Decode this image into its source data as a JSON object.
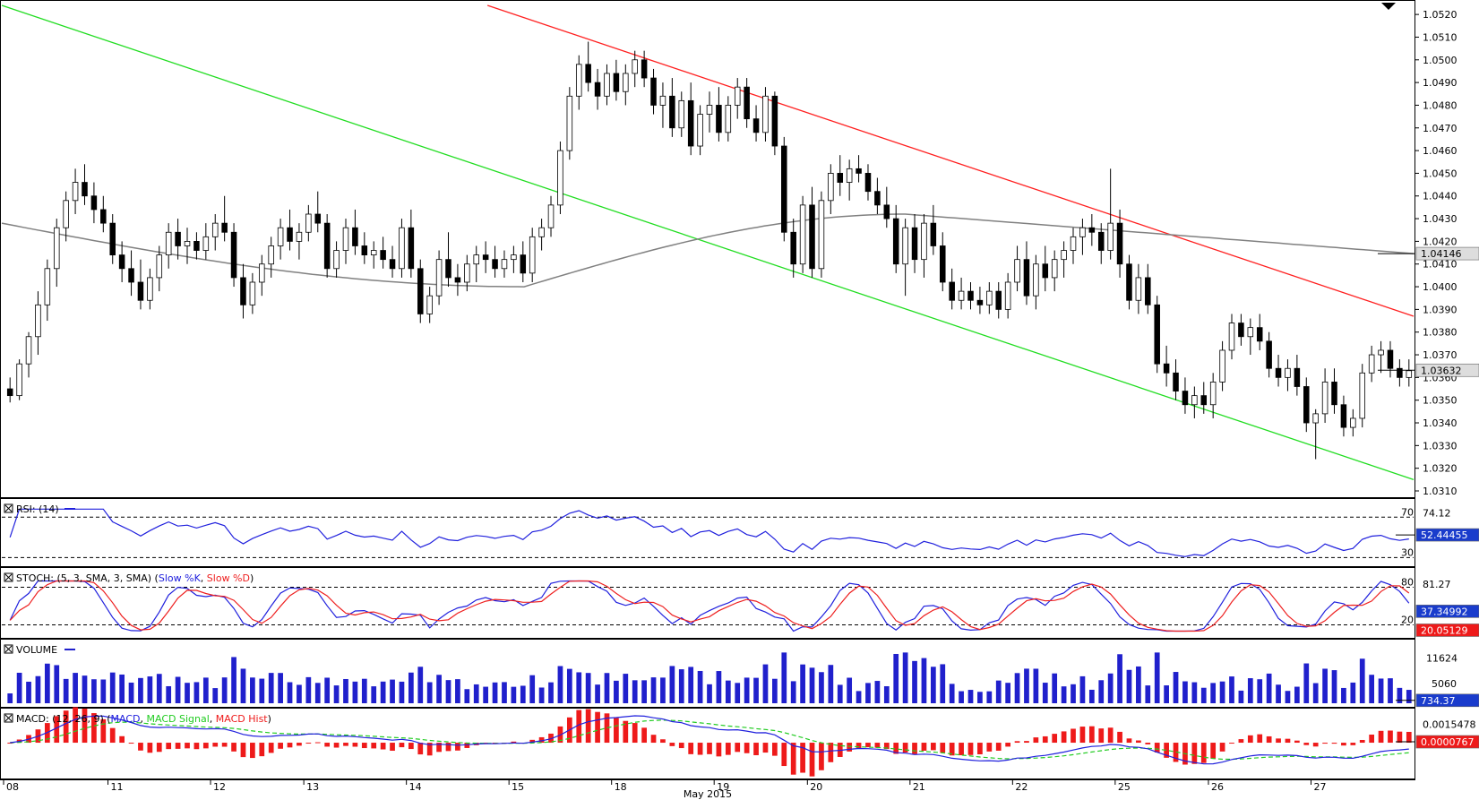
{
  "chart_data": {
    "type": "candlestick",
    "price_axis": {
      "ticks": [
        "1.0520",
        "1.0510",
        "1.0500",
        "1.0490",
        "1.0480",
        "1.0470",
        "1.0460",
        "1.0450",
        "1.0440",
        "1.0430",
        "1.0420",
        "1.0410",
        "1.0400",
        "1.0390",
        "1.0380",
        "1.0370",
        "1.0360",
        "1.0350",
        "1.0340",
        "1.0330",
        "1.0320",
        "1.0310"
      ],
      "ylim": [
        1.031,
        1.0524
      ],
      "current_price": "1.03632",
      "ma_value": "1.04146"
    },
    "x_axis": {
      "day_labels": [
        "08",
        "11",
        "12",
        "13",
        "14",
        "15",
        "18",
        "19",
        "20",
        "21",
        "22",
        "25",
        "26",
        "27"
      ],
      "month_label": "May 2015"
    },
    "candles": [
      [
        1.0355,
        1.036,
        1.0349,
        1.0352
      ],
      [
        1.0352,
        1.0368,
        1.035,
        1.0366
      ],
      [
        1.0366,
        1.038,
        1.036,
        1.0378
      ],
      [
        1.0378,
        1.0398,
        1.037,
        1.0392
      ],
      [
        1.0392,
        1.0412,
        1.0385,
        1.0408
      ],
      [
        1.0408,
        1.043,
        1.04,
        1.0426
      ],
      [
        1.0426,
        1.0442,
        1.042,
        1.0438
      ],
      [
        1.0438,
        1.0452,
        1.0432,
        1.0446
      ],
      [
        1.0446,
        1.0454,
        1.0436,
        1.044
      ],
      [
        1.044,
        1.0446,
        1.0428,
        1.0434
      ],
      [
        1.0434,
        1.044,
        1.0424,
        1.0428
      ],
      [
        1.0428,
        1.0432,
        1.041,
        1.0414
      ],
      [
        1.0414,
        1.042,
        1.0402,
        1.0408
      ],
      [
        1.0408,
        1.0416,
        1.0396,
        1.0402
      ],
      [
        1.0402,
        1.0412,
        1.039,
        1.0394
      ],
      [
        1.0394,
        1.0408,
        1.039,
        1.0404
      ],
      [
        1.0404,
        1.0418,
        1.0398,
        1.0414
      ],
      [
        1.0414,
        1.0428,
        1.0408,
        1.0424
      ],
      [
        1.0424,
        1.043,
        1.0412,
        1.0418
      ],
      [
        1.0418,
        1.0426,
        1.041,
        1.042
      ],
      [
        1.042,
        1.0424,
        1.0412,
        1.0416
      ],
      [
        1.0416,
        1.0428,
        1.0412,
        1.0422
      ],
      [
        1.0422,
        1.0432,
        1.0416,
        1.0428
      ],
      [
        1.0428,
        1.044,
        1.042,
        1.0424
      ],
      [
        1.0424,
        1.0428,
        1.04,
        1.0404
      ],
      [
        1.0404,
        1.041,
        1.0386,
        1.0392
      ],
      [
        1.0392,
        1.0406,
        1.0388,
        1.0402
      ],
      [
        1.0402,
        1.0414,
        1.0396,
        1.041
      ],
      [
        1.041,
        1.0422,
        1.0404,
        1.0418
      ],
      [
        1.0418,
        1.043,
        1.0412,
        1.0426
      ],
      [
        1.0426,
        1.0434,
        1.0416,
        1.042
      ],
      [
        1.042,
        1.0428,
        1.0412,
        1.0424
      ],
      [
        1.0424,
        1.0436,
        1.042,
        1.0432
      ],
      [
        1.0432,
        1.0442,
        1.0424,
        1.0428
      ],
      [
        1.0428,
        1.0432,
        1.0404,
        1.0408
      ],
      [
        1.0408,
        1.042,
        1.0404,
        1.0416
      ],
      [
        1.0416,
        1.043,
        1.041,
        1.0426
      ],
      [
        1.0426,
        1.0434,
        1.0414,
        1.0418
      ],
      [
        1.0418,
        1.0424,
        1.041,
        1.0414
      ],
      [
        1.0414,
        1.042,
        1.0408,
        1.0416
      ],
      [
        1.0416,
        1.0422,
        1.0408,
        1.0412
      ],
      [
        1.0412,
        1.0418,
        1.0404,
        1.0408
      ],
      [
        1.0408,
        1.043,
        1.0404,
        1.0426
      ],
      [
        1.0426,
        1.0434,
        1.0404,
        1.0408
      ],
      [
        1.0408,
        1.0412,
        1.0384,
        1.0388
      ],
      [
        1.0388,
        1.04,
        1.0384,
        1.0396
      ],
      [
        1.0396,
        1.0416,
        1.0392,
        1.0412
      ],
      [
        1.0412,
        1.0424,
        1.04,
        1.0404
      ],
      [
        1.0404,
        1.041,
        1.0396,
        1.0402
      ],
      [
        1.0402,
        1.0414,
        1.0398,
        1.041
      ],
      [
        1.041,
        1.0418,
        1.0402,
        1.0414
      ],
      [
        1.0414,
        1.042,
        1.0406,
        1.0412
      ],
      [
        1.0412,
        1.0418,
        1.0404,
        1.0408
      ],
      [
        1.0408,
        1.0416,
        1.0404,
        1.0412
      ],
      [
        1.0412,
        1.0418,
        1.0406,
        1.0414
      ],
      [
        1.0414,
        1.042,
        1.0402,
        1.0406
      ],
      [
        1.0406,
        1.0426,
        1.0402,
        1.0422
      ],
      [
        1.0422,
        1.043,
        1.0416,
        1.0426
      ],
      [
        1.0426,
        1.044,
        1.0422,
        1.0436
      ],
      [
        1.0436,
        1.0464,
        1.0432,
        1.046
      ],
      [
        1.046,
        1.0488,
        1.0456,
        1.0484
      ],
      [
        1.0484,
        1.0502,
        1.0478,
        1.0498
      ],
      [
        1.0498,
        1.0508,
        1.0486,
        1.049
      ],
      [
        1.049,
        1.0496,
        1.0478,
        1.0484
      ],
      [
        1.0484,
        1.0498,
        1.048,
        1.0494
      ],
      [
        1.0494,
        1.05,
        1.0482,
        1.0486
      ],
      [
        1.0486,
        1.0498,
        1.048,
        1.0494
      ],
      [
        1.0494,
        1.0504,
        1.0488,
        1.05
      ],
      [
        1.05,
        1.0504,
        1.0488,
        1.0492
      ],
      [
        1.0492,
        1.0496,
        1.0476,
        1.048
      ],
      [
        1.048,
        1.049,
        1.047,
        1.0484
      ],
      [
        1.0484,
        1.0492,
        1.0466,
        1.047
      ],
      [
        1.047,
        1.0486,
        1.0466,
        1.0482
      ],
      [
        1.0482,
        1.049,
        1.0458,
        1.0462
      ],
      [
        1.0462,
        1.048,
        1.0458,
        1.0476
      ],
      [
        1.0476,
        1.0486,
        1.0468,
        1.048
      ],
      [
        1.048,
        1.0488,
        1.0464,
        1.0468
      ],
      [
        1.0468,
        1.0484,
        1.0464,
        1.048
      ],
      [
        1.048,
        1.0492,
        1.0474,
        1.0488
      ],
      [
        1.0488,
        1.0492,
        1.047,
        1.0474
      ],
      [
        1.0474,
        1.048,
        1.0464,
        1.0468
      ],
      [
        1.0468,
        1.0488,
        1.0464,
        1.0484
      ],
      [
        1.0484,
        1.0486,
        1.0458,
        1.0462
      ],
      [
        1.0462,
        1.0466,
        1.042,
        1.0424
      ],
      [
        1.0424,
        1.043,
        1.0404,
        1.041
      ],
      [
        1.041,
        1.044,
        1.0406,
        1.0436
      ],
      [
        1.0436,
        1.0444,
        1.0404,
        1.0408
      ],
      [
        1.0408,
        1.0442,
        1.0404,
        1.0438
      ],
      [
        1.0438,
        1.0454,
        1.0432,
        1.045
      ],
      [
        1.045,
        1.0458,
        1.044,
        1.0446
      ],
      [
        1.0446,
        1.0456,
        1.0438,
        1.0452
      ],
      [
        1.0452,
        1.0458,
        1.0446,
        1.045
      ],
      [
        1.045,
        1.0454,
        1.0438,
        1.0442
      ],
      [
        1.0442,
        1.0448,
        1.0432,
        1.0436
      ],
      [
        1.0436,
        1.0444,
        1.0426,
        1.043
      ],
      [
        1.043,
        1.0436,
        1.0406,
        1.041
      ],
      [
        1.041,
        1.043,
        1.0396,
        1.0426
      ],
      [
        1.0426,
        1.0432,
        1.0406,
        1.0412
      ],
      [
        1.0412,
        1.0432,
        1.0404,
        1.0428
      ],
      [
        1.0428,
        1.0436,
        1.0414,
        1.0418
      ],
      [
        1.0418,
        1.0424,
        1.0398,
        1.0402
      ],
      [
        1.0402,
        1.0408,
        1.039,
        1.0394
      ],
      [
        1.0394,
        1.0404,
        1.039,
        1.0398
      ],
      [
        1.0398,
        1.0402,
        1.039,
        1.0394
      ],
      [
        1.0394,
        1.04,
        1.0388,
        1.0392
      ],
      [
        1.0392,
        1.0402,
        1.0388,
        1.0398
      ],
      [
        1.0398,
        1.0402,
        1.0386,
        1.039
      ],
      [
        1.039,
        1.0406,
        1.0386,
        1.0402
      ],
      [
        1.0402,
        1.0418,
        1.0398,
        1.0412
      ],
      [
        1.0412,
        1.042,
        1.0392,
        1.0396
      ],
      [
        1.0396,
        1.0414,
        1.039,
        1.041
      ],
      [
        1.041,
        1.0418,
        1.0398,
        1.0404
      ],
      [
        1.0404,
        1.0416,
        1.0398,
        1.0412
      ],
      [
        1.0412,
        1.042,
        1.0404,
        1.0416
      ],
      [
        1.0416,
        1.0426,
        1.041,
        1.0422
      ],
      [
        1.0422,
        1.043,
        1.0414,
        1.0426
      ],
      [
        1.0426,
        1.0432,
        1.0418,
        1.0424
      ],
      [
        1.0424,
        1.0428,
        1.041,
        1.0416
      ],
      [
        1.0416,
        1.0452,
        1.0412,
        1.0428
      ],
      [
        1.0428,
        1.0434,
        1.0404,
        1.041
      ],
      [
        1.041,
        1.0414,
        1.039,
        1.0394
      ],
      [
        1.0394,
        1.041,
        1.0388,
        1.0404
      ],
      [
        1.0404,
        1.041,
        1.0388,
        1.0392
      ],
      [
        1.0392,
        1.0396,
        1.0362,
        1.0366
      ],
      [
        1.0366,
        1.0374,
        1.0356,
        1.0362
      ],
      [
        1.0362,
        1.0368,
        1.035,
        1.0354
      ],
      [
        1.0354,
        1.036,
        1.0344,
        1.0348
      ],
      [
        1.0348,
        1.0356,
        1.0342,
        1.0352
      ],
      [
        1.0352,
        1.0358,
        1.0344,
        1.0348
      ],
      [
        1.0348,
        1.0362,
        1.0342,
        1.0358
      ],
      [
        1.0358,
        1.0376,
        1.0354,
        1.0372
      ],
      [
        1.0372,
        1.0388,
        1.0368,
        1.0384
      ],
      [
        1.0384,
        1.0388,
        1.0374,
        1.0378
      ],
      [
        1.0378,
        1.0386,
        1.037,
        1.0382
      ],
      [
        1.0382,
        1.0388,
        1.0372,
        1.0376
      ],
      [
        1.0376,
        1.038,
        1.036,
        1.0364
      ],
      [
        1.0364,
        1.037,
        1.0356,
        1.036
      ],
      [
        1.036,
        1.0368,
        1.0354,
        1.0364
      ],
      [
        1.0364,
        1.037,
        1.0352,
        1.0356
      ],
      [
        1.0356,
        1.036,
        1.0336,
        1.034
      ],
      [
        1.034,
        1.0346,
        1.0324,
        1.0344
      ],
      [
        1.0344,
        1.0364,
        1.034,
        1.0358
      ],
      [
        1.0358,
        1.0364,
        1.0344,
        1.0348
      ],
      [
        1.0348,
        1.0352,
        1.0334,
        1.0338
      ],
      [
        1.0338,
        1.0346,
        1.0334,
        1.0342
      ],
      [
        1.0342,
        1.0366,
        1.0338,
        1.0362
      ],
      [
        1.0362,
        1.0374,
        1.0358,
        1.037
      ],
      [
        1.037,
        1.0376,
        1.0362,
        1.0372
      ],
      [
        1.0372,
        1.0376,
        1.036,
        1.0364
      ],
      [
        1.0364,
        1.0368,
        1.0356,
        1.036
      ],
      [
        1.036,
        1.0368,
        1.0356,
        1.0363
      ]
    ],
    "ma": {
      "start": 1.0428,
      "end": 1.04146,
      "shape": "sine-dip"
    },
    "trendlines": [
      {
        "color": "#ff2020",
        "from": [
          0.344,
          1.0524
        ],
        "to": [
          1.0,
          1.0387
        ]
      },
      {
        "color": "#22dd22",
        "from": [
          0.0,
          1.0524
        ],
        "to": [
          1.0,
          1.0315
        ]
      }
    ],
    "rsi": {
      "label": "RSI: (14)",
      "ticks": [
        "74.12",
        "70",
        "30"
      ],
      "current": "52.44455",
      "levels": [
        70,
        30
      ],
      "ylim": [
        25,
        80
      ]
    },
    "stoch": {
      "label_prefix": "STOCH: (5, 3, SMA, 3, SMA) (",
      "slow_k_label": "Slow %K",
      "slow_d_label": "Slow %D",
      "label_suffix": ")",
      "ticks": [
        "81.27",
        "80",
        "20"
      ],
      "current_k": "37.34992",
      "current_d": "20.05129",
      "levels": [
        80,
        20
      ],
      "ylim": [
        5,
        95
      ]
    },
    "volume": {
      "label": "VOLUME",
      "ticks": [
        "11624",
        "5060"
      ],
      "current": "734.37",
      "ylim": [
        0,
        14000
      ]
    },
    "macd": {
      "label_prefix": "MACD: (12, 26, 9) (",
      "macd_label": "MACD",
      "signal_label": "MACD Signal",
      "hist_label": "MACD Hist",
      "label_suffix": ")",
      "ticks": [
        "0.0015478",
        "0.0000767"
      ],
      "current": "0.0000767",
      "ylim": [
        -0.0028,
        0.0022
      ]
    },
    "colors": {
      "bull": "#000000",
      "bear": "#000000",
      "ma": "#808080",
      "rsi": "#2020dd",
      "stoch_k": "#2020dd",
      "stoch_d": "#ee2020",
      "volume": "#2020cc",
      "macd": "#2020dd",
      "signal": "#22cc22",
      "hist": "#ee1a1a",
      "badge_blue": "#1a3ccc",
      "badge_red": "#ee1a1a",
      "badge_gray": "#dddddd"
    }
  }
}
